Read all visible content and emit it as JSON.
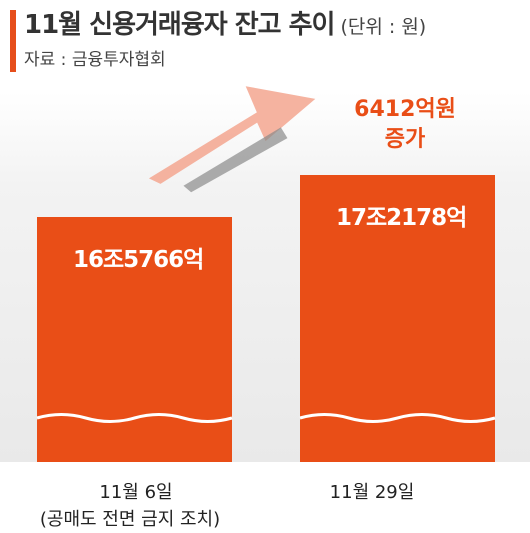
{
  "title": "11월 신용거래융자 잔고 추이",
  "unit": "(단위 : 원)",
  "source": "자료 : 금융투자협회",
  "chart_data": {
    "type": "bar",
    "title": "11월 신용거래융자 잔고 추이",
    "unit": "원",
    "categories": [
      "11월 6일",
      "11월 29일"
    ],
    "category_notes": [
      "(공매도 전면 금지 조치)",
      ""
    ],
    "values": [
      165766,
      172178
    ],
    "value_unit": "억원",
    "data_labels": [
      "16조5766억",
      "17조2178억"
    ],
    "broken_axis": true,
    "annotation": {
      "line1": "6412억원",
      "line2": "증가",
      "value": 6412
    },
    "colors": {
      "bar": "#e94e17",
      "accent": "#e64e1b",
      "arrow_light": "#f3a68f",
      "arrow_dark": "#8a8a8a"
    }
  }
}
